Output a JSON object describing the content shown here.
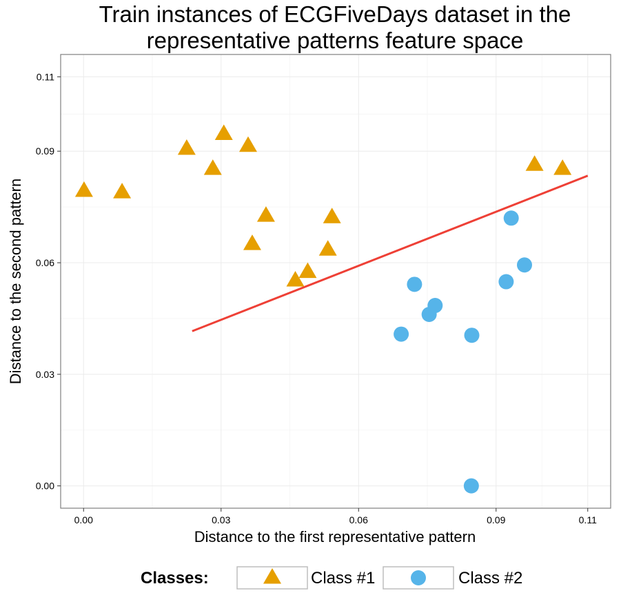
{
  "chart_data": {
    "type": "scatter",
    "title_lines": [
      "Train instances of ECGFiveDays dataset in the",
      "representative patterns feature space"
    ],
    "xlabel": "Distance to the first representative pattern",
    "ylabel": "Distance to the second pattern",
    "xlim": [
      -0.005,
      0.115
    ],
    "ylim": [
      -0.006,
      0.116
    ],
    "x_ticks": [
      {
        "value": 0.0,
        "label": "0.00"
      },
      {
        "value": 0.03,
        "label": "0.03"
      },
      {
        "value": 0.06,
        "label": "0.06"
      },
      {
        "value": 0.09,
        "label": "0.09"
      },
      {
        "value": 0.11,
        "label": "0.11"
      }
    ],
    "y_ticks": [
      {
        "value": 0.0,
        "label": "0.00"
      },
      {
        "value": 0.03,
        "label": "0.03"
      },
      {
        "value": 0.06,
        "label": "0.06"
      },
      {
        "value": 0.09,
        "label": "0.09"
      },
      {
        "value": 0.11,
        "label": "0.11"
      }
    ],
    "grid": true,
    "legend": {
      "title": "Classes:",
      "position": "bottom",
      "entries": [
        {
          "label": "Class #1",
          "shape": "triangle",
          "color": "#E69F00"
        },
        {
          "label": "Class #2",
          "shape": "circle",
          "color": "#56B4E9"
        }
      ]
    },
    "series": [
      {
        "name": "Class #1",
        "shape": "triangle",
        "color": "#E69F00",
        "points": [
          [
            0.0001,
            0.0793
          ],
          [
            0.0084,
            0.0789
          ],
          [
            0.0225,
            0.0906
          ],
          [
            0.0282,
            0.0852
          ],
          [
            0.0306,
            0.0946
          ],
          [
            0.0359,
            0.0914
          ],
          [
            0.0368,
            0.065
          ],
          [
            0.0398,
            0.0726
          ],
          [
            0.0462,
            0.0552
          ],
          [
            0.0489,
            0.0575
          ],
          [
            0.0533,
            0.0635
          ],
          [
            0.0542,
            0.0722
          ],
          [
            0.0984,
            0.0863
          ],
          [
            0.1045,
            0.0852
          ]
        ]
      },
      {
        "name": "Class #2",
        "shape": "circle",
        "color": "#56B4E9",
        "points": [
          [
            0.0693,
            0.0408
          ],
          [
            0.0722,
            0.0542
          ],
          [
            0.0754,
            0.0461
          ],
          [
            0.0767,
            0.0485
          ],
          [
            0.0847,
            0.0405
          ],
          [
            0.0846,
            0.0
          ],
          [
            0.0922,
            0.0549
          ],
          [
            0.0933,
            0.072
          ],
          [
            0.0962,
            0.0594
          ]
        ]
      }
    ],
    "decision_line": {
      "color": "#EE4036",
      "from": [
        0.0237,
        0.0416
      ],
      "to": [
        0.11,
        0.0834
      ]
    }
  }
}
